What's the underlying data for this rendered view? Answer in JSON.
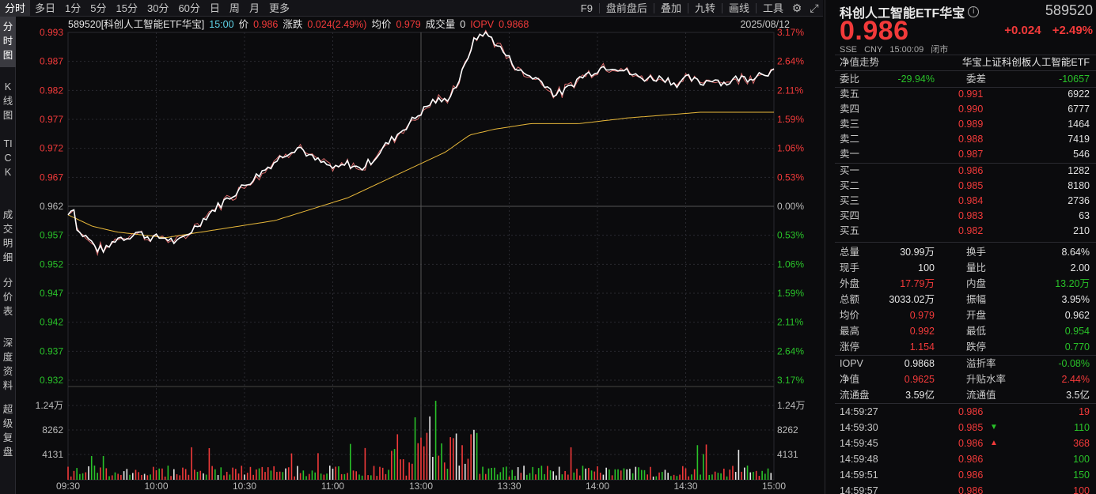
{
  "toolbar": {
    "left_tabs": [
      "分时",
      "多日",
      "1分",
      "5分",
      "15分",
      "30分",
      "60分",
      "日",
      "周",
      "月",
      "更多"
    ],
    "active_tab": 0,
    "right_tabs": [
      "F9",
      "盘前盘后",
      "叠加",
      "九转",
      "画线",
      "工具"
    ],
    "icons": [
      "gear-icon",
      "expand-icon"
    ]
  },
  "side_tabs": [
    {
      "label": "分时图",
      "active": true
    },
    {
      "label": "K线图",
      "active": false
    },
    {
      "label": "TICK",
      "active": false
    },
    {
      "label": "成交明细",
      "active": false
    },
    {
      "label": "分价表",
      "active": false
    },
    {
      "label": "深度资料",
      "active": false
    },
    {
      "label": "超级复盘",
      "active": false
    }
  ],
  "chart_info": {
    "symbol": "589520[科创人工智能ETF华宝]",
    "time": "15:00",
    "price_label": "价",
    "price": "0.986",
    "change_label": "涨跌",
    "change": "0.024(2.49%)",
    "avg_label": "均价",
    "avg": "0.979",
    "vol_label": "成交量",
    "vol": "0",
    "iopv_label": "IOPV",
    "iopv": "0.9868",
    "date": "2025/08/12"
  },
  "colors": {
    "up": "#f23a3a",
    "down": "#29c229",
    "price_line": "#ffffff",
    "avg_line": "#e8b83a",
    "iopv_line": "#d86a6a",
    "grid": "#2a2a30"
  },
  "chart_data": {
    "type": "line",
    "title": "",
    "y_left_ticks": [
      "0.993",
      "0.987",
      "0.982",
      "0.977",
      "0.972",
      "0.967",
      "0.962",
      "0.957",
      "0.952",
      "0.947",
      "0.942",
      "0.937",
      "0.932"
    ],
    "y_right_ticks": [
      "3.17%",
      "2.64%",
      "2.11%",
      "1.59%",
      "1.06%",
      "0.53%",
      "0.00%",
      "0.53%",
      "1.06%",
      "1.59%",
      "2.11%",
      "2.64%",
      "3.17%"
    ],
    "ylim": [
      0.932,
      0.993
    ],
    "prev_close": 0.962,
    "x_ticks": [
      "09:30",
      "10:00",
      "10:30",
      "11:00",
      "13:00",
      "13:30",
      "14:00",
      "14:30",
      "15:00"
    ],
    "volume_ticks": [
      "1.24万",
      "8262",
      "4131"
    ],
    "price_series": [
      [
        0,
        0.961
      ],
      [
        2,
        0.963
      ],
      [
        4,
        0.958
      ],
      [
        8,
        0.957
      ],
      [
        12,
        0.955
      ],
      [
        16,
        0.955
      ],
      [
        20,
        0.957
      ],
      [
        24,
        0.957
      ],
      [
        28,
        0.958
      ],
      [
        34,
        0.957
      ],
      [
        40,
        0.957
      ],
      [
        45,
        0.956
      ],
      [
        50,
        0.958
      ],
      [
        55,
        0.96
      ],
      [
        60,
        0.962
      ],
      [
        66,
        0.964
      ],
      [
        72,
        0.966
      ],
      [
        78,
        0.968
      ],
      [
        84,
        0.97
      ],
      [
        90,
        0.972
      ],
      [
        95,
        0.973
      ],
      [
        100,
        0.971
      ],
      [
        105,
        0.97
      ],
      [
        110,
        0.969
      ],
      [
        115,
        0.97
      ],
      [
        120,
        0.969
      ],
      [
        126,
        0.971
      ],
      [
        130,
        0.973
      ],
      [
        135,
        0.975
      ],
      [
        140,
        0.977
      ],
      [
        145,
        0.979
      ],
      [
        150,
        0.981
      ],
      [
        155,
        0.981
      ],
      [
        160,
        0.984
      ],
      [
        163,
        0.987
      ],
      [
        166,
        0.991
      ],
      [
        170,
        0.993
      ],
      [
        174,
        0.992
      ],
      [
        180,
        0.989
      ],
      [
        186,
        0.986
      ],
      [
        192,
        0.985
      ],
      [
        196,
        0.984
      ],
      [
        200,
        0.982
      ],
      [
        205,
        0.983
      ],
      [
        210,
        0.985
      ],
      [
        215,
        0.986
      ],
      [
        220,
        0.987
      ],
      [
        225,
        0.987
      ],
      [
        230,
        0.986
      ],
      [
        235,
        0.985
      ],
      [
        240,
        0.985
      ],
      [
        245,
        0.985
      ],
      [
        250,
        0.984
      ],
      [
        255,
        0.985
      ],
      [
        260,
        0.984
      ],
      [
        265,
        0.985
      ],
      [
        270,
        0.984
      ],
      [
        275,
        0.985
      ],
      [
        280,
        0.985
      ],
      [
        285,
        0.986
      ],
      [
        290,
        0.986
      ]
    ],
    "avg_series": [
      [
        0,
        0.961
      ],
      [
        10,
        0.959
      ],
      [
        20,
        0.958
      ],
      [
        40,
        0.957
      ],
      [
        55,
        0.958
      ],
      [
        70,
        0.959
      ],
      [
        85,
        0.96
      ],
      [
        100,
        0.962
      ],
      [
        115,
        0.964
      ],
      [
        125,
        0.966
      ],
      [
        135,
        0.968
      ],
      [
        145,
        0.97
      ],
      [
        155,
        0.972
      ],
      [
        165,
        0.975
      ],
      [
        175,
        0.976
      ],
      [
        190,
        0.977
      ],
      [
        210,
        0.977
      ],
      [
        230,
        0.978
      ],
      [
        260,
        0.979
      ],
      [
        290,
        0.979
      ]
    ],
    "volume_max": 12400
  },
  "panel": {
    "name": "科创人工智能ETF华宝",
    "code": "589520",
    "price": "0.986",
    "change": "+0.024",
    "change_pct": "+2.49%",
    "meta": [
      "SSE",
      "CNY",
      "15:00:09",
      "闭市"
    ],
    "nav_label": "净值走势",
    "index_name": "华宝上证科创板人工智能ETF",
    "weibi_label": "委比",
    "weibi": "-29.94%",
    "weicha_label": "委差",
    "weicha": "-10657",
    "sells": [
      {
        "label": "卖五",
        "price": "0.991",
        "qty": "6922"
      },
      {
        "label": "卖四",
        "price": "0.990",
        "qty": "6777"
      },
      {
        "label": "卖三",
        "price": "0.989",
        "qty": "1464"
      },
      {
        "label": "卖二",
        "price": "0.988",
        "qty": "7419"
      },
      {
        "label": "卖一",
        "price": "0.987",
        "qty": "546"
      }
    ],
    "buys": [
      {
        "label": "买一",
        "price": "0.986",
        "qty": "1282"
      },
      {
        "label": "买二",
        "price": "0.985",
        "qty": "8180"
      },
      {
        "label": "买三",
        "price": "0.984",
        "qty": "2736"
      },
      {
        "label": "买四",
        "price": "0.983",
        "qty": "63"
      },
      {
        "label": "买五",
        "price": "0.982",
        "qty": "210"
      }
    ],
    "stats": [
      {
        "l1": "总量",
        "v1": "30.99万",
        "c1": "white",
        "l2": "换手",
        "v2": "8.64%",
        "c2": "white"
      },
      {
        "l1": "现手",
        "v1": "100",
        "c1": "white",
        "l2": "量比",
        "v2": "2.00",
        "c2": "white"
      },
      {
        "l1": "外盘",
        "v1": "17.79万",
        "c1": "red",
        "l2": "内盘",
        "v2": "13.20万",
        "c2": "green"
      },
      {
        "l1": "总额",
        "v1": "3033.02万",
        "c1": "white",
        "l2": "振幅",
        "v2": "3.95%",
        "c2": "white"
      },
      {
        "l1": "均价",
        "v1": "0.979",
        "c1": "red",
        "l2": "开盘",
        "v2": "0.962",
        "c2": "white"
      },
      {
        "l1": "最高",
        "v1": "0.992",
        "c1": "red",
        "l2": "最低",
        "v2": "0.954",
        "c2": "green"
      },
      {
        "l1": "涨停",
        "v1": "1.154",
        "c1": "red",
        "l2": "跌停",
        "v2": "0.770",
        "c2": "green"
      }
    ],
    "stats2": [
      {
        "l1": "IOPV",
        "v1": "0.9868",
        "c1": "white",
        "l2": "溢折率",
        "v2": "-0.08%",
        "c2": "green"
      },
      {
        "l1": "净值",
        "v1": "0.9625",
        "c1": "red",
        "l2": "升贴水率",
        "v2": "2.44%",
        "c2": "red"
      },
      {
        "l1": "流通盘",
        "v1": "3.59亿",
        "c1": "white",
        "l2": "流通值",
        "v2": "3.5亿",
        "c2": "white"
      }
    ],
    "ticks": [
      {
        "time": "14:59:27",
        "price": "0.986",
        "arrow": "",
        "qty": "19",
        "dir": "red"
      },
      {
        "time": "14:59:30",
        "price": "0.985",
        "arrow": "down",
        "qty": "110",
        "dir": "green"
      },
      {
        "time": "14:59:45",
        "price": "0.986",
        "arrow": "up",
        "qty": "368",
        "dir": "red"
      },
      {
        "time": "14:59:48",
        "price": "0.986",
        "arrow": "",
        "qty": "100",
        "dir": "green"
      },
      {
        "time": "14:59:51",
        "price": "0.986",
        "arrow": "",
        "qty": "150",
        "dir": "green"
      },
      {
        "time": "14:59:57",
        "price": "0.986",
        "arrow": "",
        "qty": "100",
        "dir": "red"
      }
    ]
  }
}
